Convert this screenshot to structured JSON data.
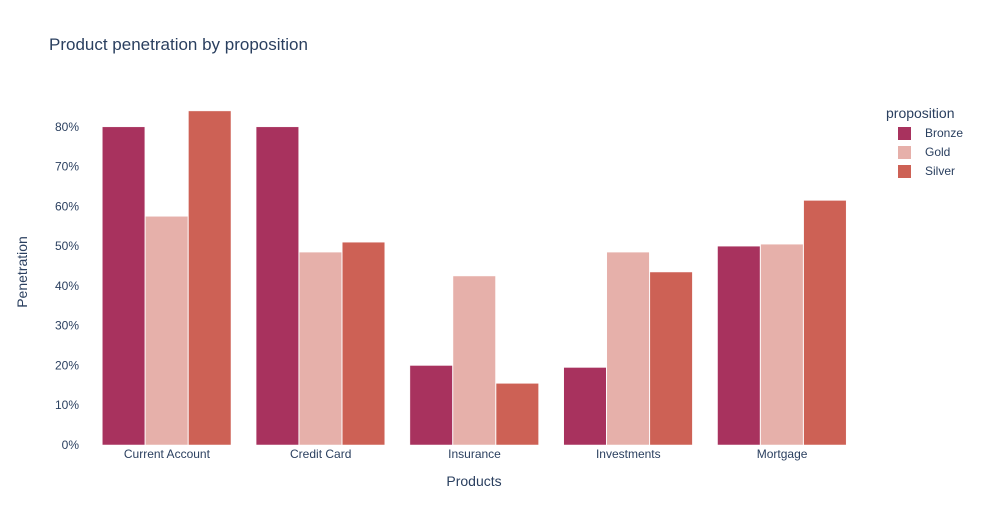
{
  "chart_data": {
    "type": "bar",
    "title": "Product penetration by proposition",
    "xlabel": "Products",
    "ylabel": "Penetration",
    "categories": [
      "Current Account",
      "Credit Card",
      "Insurance",
      "Investments",
      "Mortgage"
    ],
    "series": [
      {
        "name": "Bronze",
        "color": "#a8325e",
        "values": [
          0.8,
          0.8,
          0.2,
          0.195,
          0.5
        ]
      },
      {
        "name": "Gold",
        "color": "#e6b0aa",
        "values": [
          0.575,
          0.485,
          0.425,
          0.485,
          0.505
        ]
      },
      {
        "name": "Silver",
        "color": "#cd6155",
        "values": [
          0.84,
          0.51,
          0.155,
          0.435,
          0.615
        ]
      }
    ],
    "ylim": [
      0,
      0.88
    ],
    "yticks": [
      0,
      0.1,
      0.2,
      0.3,
      0.4,
      0.5,
      0.6,
      0.7,
      0.8
    ],
    "ytick_labels": [
      "0%",
      "10%",
      "20%",
      "30%",
      "40%",
      "50%",
      "60%",
      "70%",
      "80%"
    ],
    "grid": false,
    "legend": {
      "title": "proposition",
      "position": "top-right"
    }
  }
}
